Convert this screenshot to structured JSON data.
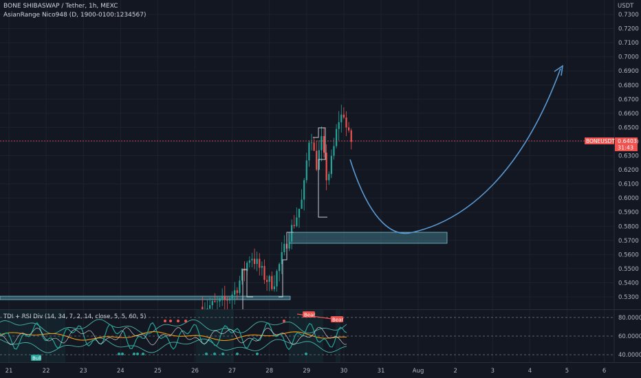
{
  "header": {
    "symbol_line": "BONE SHIBASWAP / Tether, 1h, MEXC",
    "indicator_line": "AsianRange Nico948 (D, 1900-0100:1234567)"
  },
  "price_axis": {
    "unit": "USDT",
    "ticks": [
      "0.7300",
      "0.7200",
      "0.7100",
      "0.7000",
      "0.6900",
      "0.6800",
      "0.6700",
      "0.6600",
      "0.6500",
      "0.6400",
      "0.6300",
      "0.6200",
      "0.6100",
      "0.6000",
      "0.5900",
      "0.5800",
      "0.5700",
      "0.5600",
      "0.5500",
      "0.5400",
      "0.5300"
    ],
    "last_price_symbol": "BONEUSDT",
    "last_price": "0.6403",
    "countdown": "31:43"
  },
  "time_axis": {
    "ticks": [
      "21",
      "22",
      "23",
      "24",
      "25",
      "26",
      "27",
      "28",
      "29",
      "30",
      "31",
      "Aug",
      "2",
      "3",
      "4",
      "5",
      "6"
    ]
  },
  "oscillator": {
    "label": "TDI + RSI Div (14, 34, 7, 2, 14, close, 5, 5, 60, 5)",
    "ticks": [
      "80.0000",
      "60.0000",
      "40.0000"
    ],
    "signals": {
      "bull": "Bull",
      "bear1": "Bear",
      "bear2": "Bear"
    }
  },
  "colors": {
    "background": "#131722",
    "bull_candle": "#26a69a",
    "bear_candle": "#ef5350",
    "zone_fill": "#4a8a9a",
    "projection": "#5b9bd5",
    "price_line": "#ef5350",
    "tdi_green": "#26a69a",
    "tdi_orange": "#f39c12",
    "tdi_teal_band": "#4db6ac"
  },
  "chart_data": {
    "type": "candlestick",
    "symbol": "BONE SHIBASWAP / Tether",
    "interval": "1h",
    "exchange": "MEXC",
    "last_price": 0.6403,
    "ylim": [
      0.523,
      0.735
    ],
    "annotations": [
      {
        "kind": "zone",
        "from": "20",
        "to": "28.5",
        "low": 0.5295,
        "high": 0.531
      },
      {
        "kind": "zone",
        "from": "28.7",
        "to": "Jul 31.9",
        "low": 0.568,
        "high": 0.5755
      },
      {
        "kind": "projection_curve",
        "points": [
          [
            30.2,
            0.627
          ],
          [
            31.8,
            0.576
          ],
          [
            33.5,
            0.588
          ],
          [
            35.1,
            0.693
          ]
        ]
      }
    ],
    "price_path": [
      [
        26.2,
        0.523
      ],
      [
        26.5,
        0.524
      ],
      [
        26.8,
        0.527
      ],
      [
        27.1,
        0.535
      ],
      [
        27.3,
        0.548
      ],
      [
        27.5,
        0.56
      ],
      [
        27.7,
        0.552
      ],
      [
        27.9,
        0.543
      ],
      [
        28.1,
        0.539
      ],
      [
        28.3,
        0.555
      ],
      [
        28.5,
        0.572
      ],
      [
        28.7,
        0.585
      ],
      [
        28.9,
        0.6
      ],
      [
        29.0,
        0.626
      ],
      [
        29.1,
        0.65
      ],
      [
        29.25,
        0.622
      ],
      [
        29.4,
        0.64
      ],
      [
        29.55,
        0.612
      ],
      [
        29.7,
        0.63
      ],
      [
        29.85,
        0.655
      ],
      [
        30.0,
        0.66
      ],
      [
        30.1,
        0.645
      ],
      [
        30.2,
        0.6403
      ]
    ],
    "oscillator": {
      "name": "TDI + RSI Div",
      "params": "14, 34, 7, 2, 14, close, 5, 5, 60, 5",
      "levels": [
        80,
        60,
        40
      ],
      "signals": [
        {
          "label": "Bull",
          "at": "21.5"
        },
        {
          "label": "Bear",
          "at": "29.0"
        },
        {
          "label": "Bear",
          "at": "30.0"
        }
      ]
    }
  }
}
